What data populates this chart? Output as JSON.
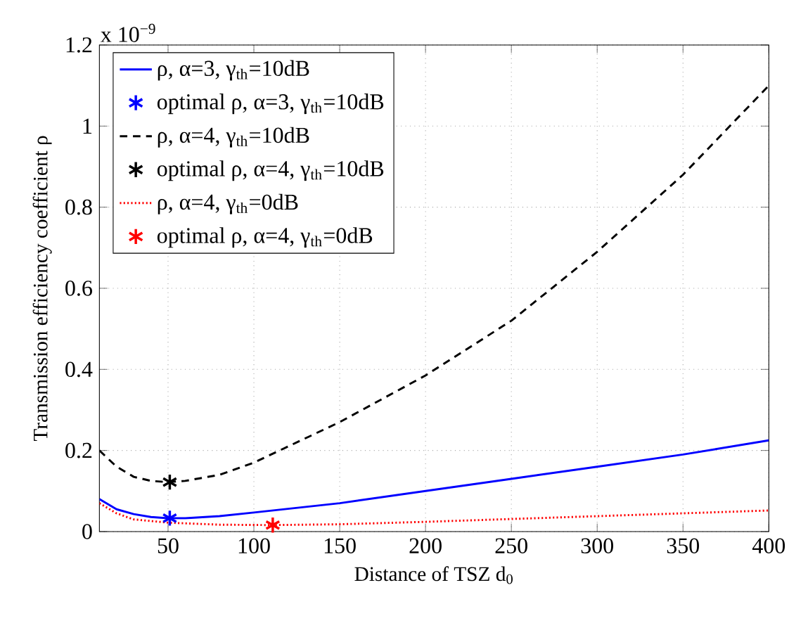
{
  "chart_data": {
    "type": "line",
    "xlabel": "Distance of TSZ d$_{0}$",
    "ylabel": "Transmission efficiency coefficient   ρ",
    "annotations": [
      "x 10$^{−9}$"
    ],
    "xlim": [
      10,
      400
    ],
    "ylim": [
      0,
      1.2
    ],
    "xticks": [
      50,
      100,
      150,
      200,
      250,
      300,
      350,
      400
    ],
    "yticks": [
      0,
      0.2,
      0.4,
      0.6,
      0.8,
      1,
      1.2
    ],
    "grid": true,
    "legend": "top left",
    "series": [
      {
        "name": "ρ, α=3, γ$_{th}$=10dB",
        "line_style": "solid",
        "color": "#0000ff",
        "x": [
          10,
          20,
          30,
          40,
          50,
          60,
          80,
          100,
          150,
          200,
          250,
          300,
          350,
          400
        ],
        "values": [
          0.08,
          0.055,
          0.043,
          0.036,
          0.033,
          0.033,
          0.038,
          0.047,
          0.07,
          0.1,
          0.13,
          0.16,
          0.19,
          0.225
        ]
      },
      {
        "name": "optimal ρ, α=3, γ$_{th}$=10dB",
        "type": "scatter",
        "marker": "cross",
        "color": "#0000ff",
        "x": [
          51
        ],
        "values": [
          0.033
        ]
      },
      {
        "name": "ρ, α=4, γ$_{th}$=10dB",
        "line_style": "dashed",
        "color": "#000000",
        "x": [
          10,
          20,
          30,
          40,
          50,
          60,
          80,
          100,
          150,
          200,
          250,
          300,
          350,
          400
        ],
        "values": [
          0.2,
          0.16,
          0.135,
          0.125,
          0.122,
          0.125,
          0.14,
          0.17,
          0.27,
          0.385,
          0.52,
          0.69,
          0.88,
          1.1
        ]
      },
      {
        "name": "optimal ρ, α=4, γ$_{th}$=10dB",
        "type": "scatter",
        "marker": "cross",
        "color": "#000000",
        "x": [
          51
        ],
        "values": [
          0.122
        ]
      },
      {
        "name": "ρ, α=4, γ$_{th}$=0dB",
        "line_style": "dotted",
        "color": "#ff0000",
        "x": [
          10,
          20,
          30,
          50,
          80,
          110,
          150,
          200,
          250,
          300,
          350,
          400
        ],
        "values": [
          0.07,
          0.045,
          0.03,
          0.022,
          0.017,
          0.016,
          0.018,
          0.024,
          0.031,
          0.038,
          0.045,
          0.052
        ]
      },
      {
        "name": "optimal ρ, α=4, γ$_{th}$=0dB",
        "type": "scatter",
        "marker": "cross",
        "color": "#ff0000",
        "x": [
          111
        ],
        "values": [
          0.016
        ]
      }
    ]
  }
}
